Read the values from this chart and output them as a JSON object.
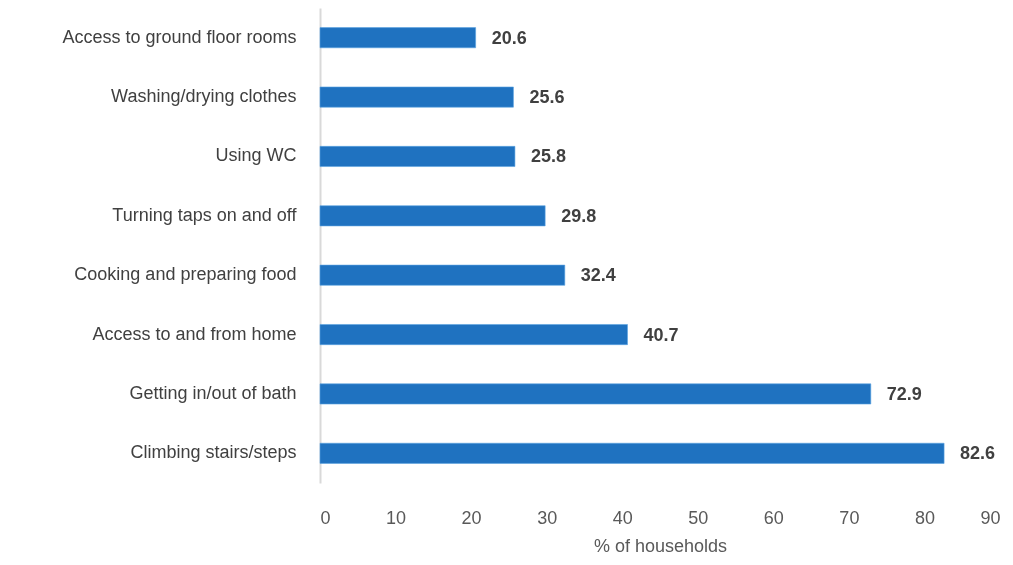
{
  "chart_data": {
    "type": "bar",
    "orientation": "horizontal",
    "categories": [
      "Access to ground floor rooms",
      "Washing/drying clothes",
      "Using WC",
      "Turning taps on and off",
      "Cooking and preparing food",
      "Access to and from home",
      "Getting in/out of bath",
      "Climbing stairs/steps"
    ],
    "values": [
      20.6,
      25.6,
      25.8,
      29.8,
      32.4,
      40.7,
      72.9,
      82.6
    ],
    "color": "#1f72c0",
    "xlim": [
      0,
      90
    ],
    "xticks": [
      0,
      10,
      20,
      30,
      40,
      50,
      60,
      70,
      80,
      90
    ],
    "xlabel": "% of households",
    "data_labels": true
  }
}
